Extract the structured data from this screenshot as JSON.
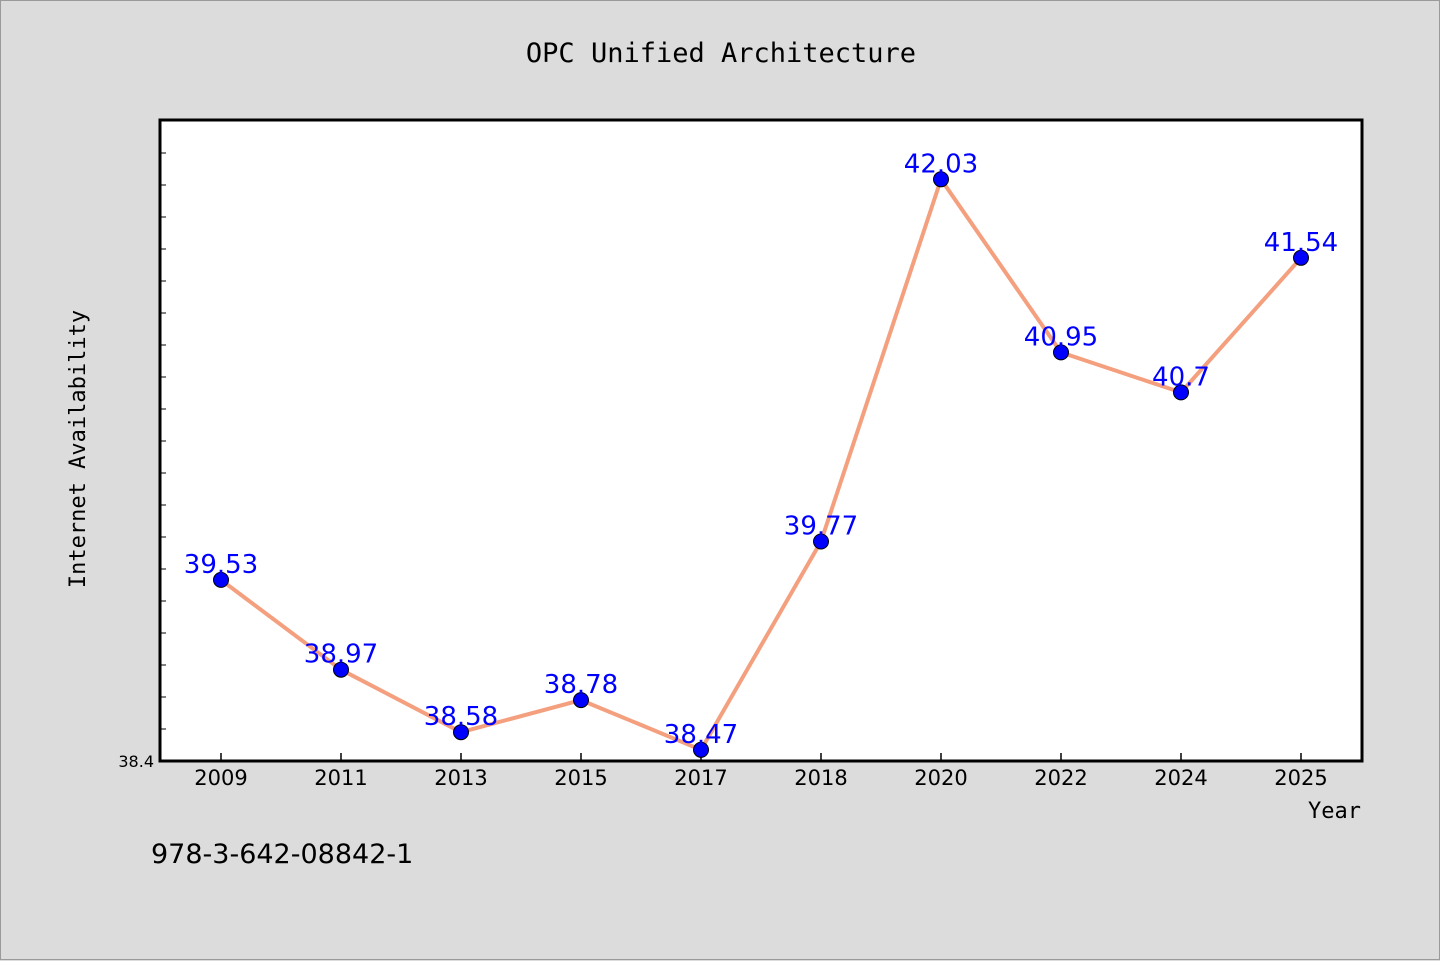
{
  "chart_data": {
    "type": "line",
    "title": "OPC Unified Architecture",
    "xlabel": "Year",
    "ylabel": "Internet Availability",
    "categories": [
      "2009",
      "2011",
      "2013",
      "2015",
      "2017",
      "2018",
      "2020",
      "2022",
      "2024",
      "2025"
    ],
    "series": [
      {
        "values": [
          39.53,
          38.97,
          38.58,
          38.78,
          38.47,
          39.77,
          42.03,
          40.95,
          40.7,
          41.54
        ],
        "labels": [
          "39.53",
          "38.97",
          "38.58",
          "38.78",
          "38.47",
          "39.77",
          "42.03",
          "40.95",
          "40.7",
          "41.54"
        ]
      }
    ],
    "ylim": [
      38.4,
      42.4
    ],
    "y_min_label": "38.4",
    "grid": false,
    "line_color": "#f4a07f",
    "marker_color": "#0000ff",
    "label_color": "#0000ff"
  },
  "footer": {
    "code": "978-3-642-08842-1"
  }
}
